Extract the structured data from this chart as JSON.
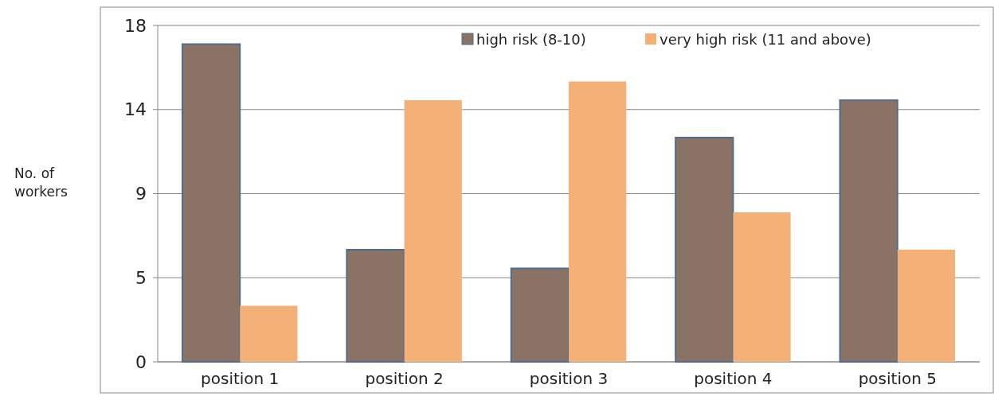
{
  "chart_data": {
    "type": "bar",
    "ylabel": "No. of workers",
    "categories": [
      "position 1",
      "position 2",
      "position 3",
      "position 4",
      "position 5"
    ],
    "series": [
      {
        "name": "high risk (8-10)",
        "color": "#8a7264",
        "values": [
          17,
          6,
          5,
          12,
          14
        ]
      },
      {
        "name": "very high risk (11 and above)",
        "color": "#f5b077",
        "values": [
          3,
          14,
          15,
          8,
          6
        ]
      }
    ],
    "ylim": [
      0,
      18
    ],
    "yticks": [
      0,
      {
        "value": 4.5,
        "label": "5"
      },
      9,
      {
        "value": 13.5,
        "label": "14"
      },
      18
    ],
    "grid": "y",
    "legend": "top right"
  }
}
